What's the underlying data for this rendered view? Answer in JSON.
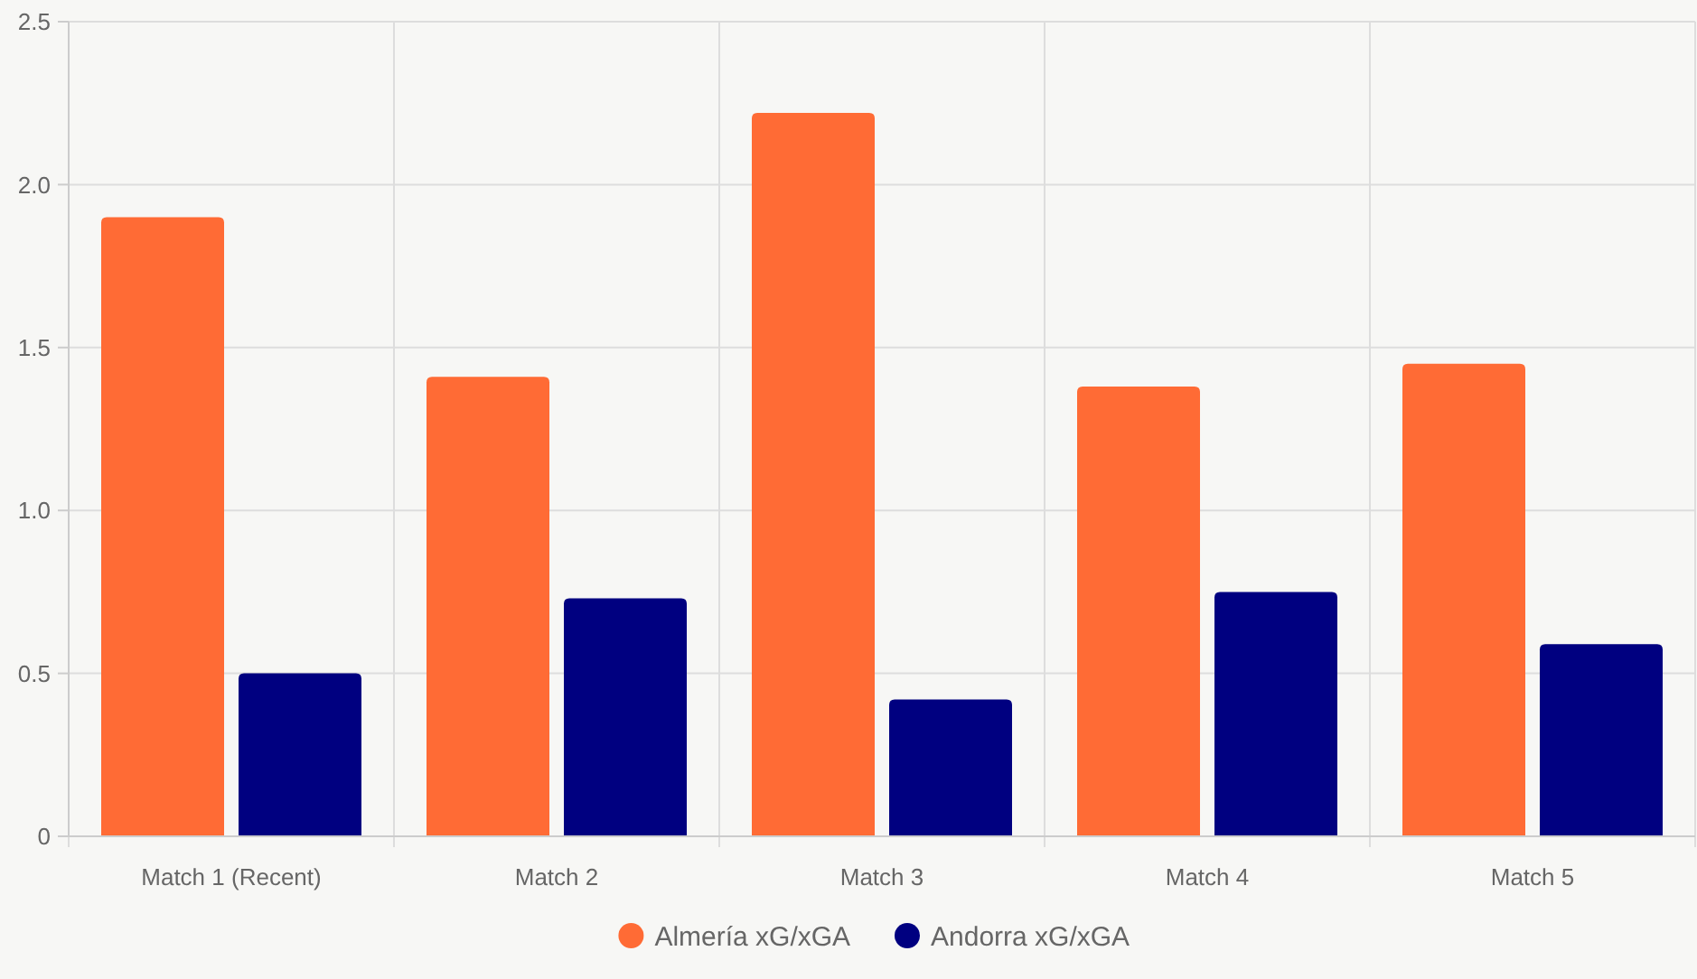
{
  "chart_data": {
    "type": "bar",
    "categories": [
      "Match 1 (Recent)",
      "Match 2",
      "Match 3",
      "Match 4",
      "Match 5"
    ],
    "series": [
      {
        "name": "Almería xG/xGA",
        "color": "#ff6b35",
        "values": [
          1.9,
          1.41,
          2.22,
          1.38,
          1.45
        ]
      },
      {
        "name": "Andorra xG/xGA",
        "color": "#000080",
        "values": [
          0.5,
          0.73,
          0.42,
          0.75,
          0.59
        ]
      }
    ],
    "ylim": [
      0,
      2.5
    ],
    "yticks": [
      {
        "value": 0,
        "label": "0"
      },
      {
        "value": 0.5,
        "label": "0.5"
      },
      {
        "value": 1,
        "label": "1.0"
      },
      {
        "value": 1.5,
        "label": "1.5"
      },
      {
        "value": 2,
        "label": "2.0"
      },
      {
        "value": 2.5,
        "label": "2.5"
      }
    ],
    "grid": true,
    "legend": "bottom"
  }
}
